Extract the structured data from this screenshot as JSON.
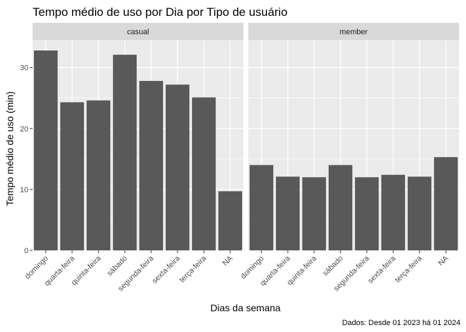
{
  "chart_data": {
    "type": "bar",
    "title": "Tempo médio de uso por Dia por Tipo de usuário",
    "xlabel": "Dias da semana",
    "ylabel": "Tempo médio de uso (min)",
    "caption": "Dados: Desde 01 2023 há 01 2024",
    "categories": [
      "domingo",
      "quarta-feira",
      "quinta-feira",
      "sábado",
      "segunda-feira",
      "sexta-feira",
      "terça-feira",
      "NA"
    ],
    "ylim": [
      0,
      34.5
    ],
    "yticks": [
      0,
      10,
      20,
      30
    ],
    "grid": true,
    "bar_color": "#595959",
    "panel_background": "#ebebeb",
    "strip_background": "#d9d9d9",
    "facets": [
      {
        "label": "casual",
        "values": [
          32.8,
          24.3,
          24.6,
          32.1,
          27.8,
          27.2,
          25.1,
          9.7
        ]
      },
      {
        "label": "member",
        "values": [
          14.0,
          12.1,
          12.0,
          14.0,
          12.0,
          12.4,
          12.1,
          15.3
        ]
      }
    ]
  }
}
